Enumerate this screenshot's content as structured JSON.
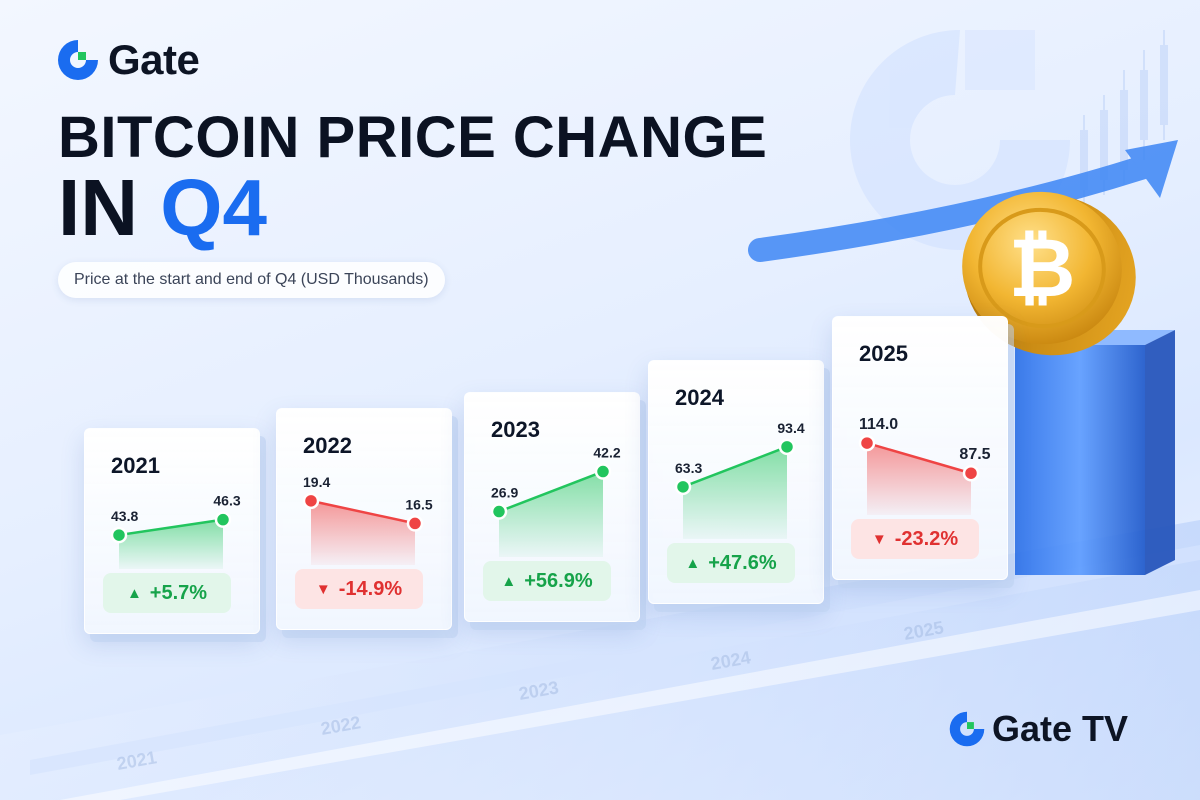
{
  "brand": {
    "name": "Gate",
    "footer_name": "Gate TV"
  },
  "title": {
    "line1": "BITCOIN PRICE CHANGE",
    "line2_prefix": "IN",
    "line2_highlight": "Q4"
  },
  "subtitle": "Price at the start and end of Q4 (USD Thousands)",
  "colors": {
    "brand_blue": "#1a6cf0",
    "up": "#22c55e",
    "down": "#ef4444",
    "coin": "#f2b632"
  },
  "icons": [
    "gate-logo-icon",
    "bitcoin-coin-icon",
    "rising-arrow-icon"
  ],
  "chart_data": {
    "type": "line",
    "title": "BITCOIN PRICE CHANGE IN Q4",
    "subtitle": "Price at the start and end of Q4 (USD Thousands)",
    "unit": "USD Thousands",
    "categories": [
      "2021",
      "2022",
      "2023",
      "2024",
      "2025"
    ],
    "series": [
      {
        "year": "2021",
        "start": 43.8,
        "end": 46.3,
        "start_label": "43.8",
        "end_label": "46.3",
        "change": "+5.7%",
        "direction": "up"
      },
      {
        "year": "2022",
        "start": 19.4,
        "end": 16.5,
        "start_label": "19.4",
        "end_label": "16.5",
        "change": "-14.9%",
        "direction": "down"
      },
      {
        "year": "2023",
        "start": 26.9,
        "end": 42.2,
        "start_label": "26.9",
        "end_label": "42.2",
        "change": "+56.9%",
        "direction": "up"
      },
      {
        "year": "2024",
        "start": 63.3,
        "end": 93.4,
        "start_label": "63.3",
        "end_label": "93.4",
        "change": "+47.6%",
        "direction": "up"
      },
      {
        "year": "2025",
        "start": 114.0,
        "end": 87.5,
        "start_label": "114.0",
        "end_label": "87.5",
        "change": "-23.2%",
        "direction": "down"
      }
    ]
  }
}
